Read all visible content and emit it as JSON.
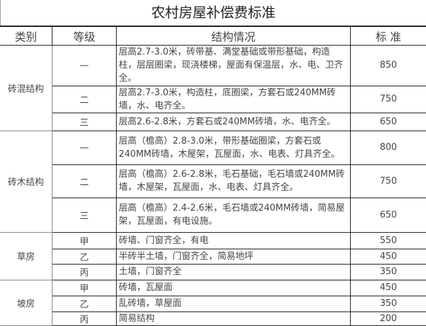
{
  "title": "农村房屋补偿费标准",
  "headers": [
    "类别",
    "等级",
    "结构情况",
    "标 准"
  ],
  "groups": [
    {
      "category": "砖混结构",
      "rows": [
        {
          "grade": "一",
          "desc": "层高2.7-3.0米，砖带基、满堂基础或带形基础，构造柱，层层圈梁，现浇楼梯，屋面有保温层，水、电、卫齐全。",
          "standard": "850"
        },
        {
          "grade": "二",
          "desc": "层高2.7-3.0米，构造柱，底圈梁，方套石或240MM砖墙，水、电齐全。",
          "standard": "750"
        },
        {
          "grade": "三",
          "desc": "层高2.6-2.8米，方套石或240MM砖墙，水、电齐全。",
          "standard": "650"
        }
      ]
    },
    {
      "category": "砖木结构",
      "rows": [
        {
          "grade": "一",
          "desc": "层高（檐高）2.8-3.0米，带形基础圈梁，方套石或240MM砖墙，木屋架，瓦屋面，水、电表、灯具齐全。",
          "standard": "800"
        },
        {
          "grade": "二",
          "desc": "层高（檐高）2.6-2.8米，毛石基础，毛石墙或240MM砖墙，木屋架，瓦屋面，水、电表、灯具齐全。",
          "standard": "750"
        },
        {
          "grade": "三",
          "desc": "层高（檐高）2.4-2.6米，毛石墙或240MM砖墙，简易屋架，瓦屋面，有电设施。",
          "standard": "650"
        }
      ]
    },
    {
      "category": "草房",
      "rows": [
        {
          "grade": "甲",
          "desc": "砖墙、门窗齐全，有电",
          "standard": "550"
        },
        {
          "grade": "乙",
          "desc": "半砖半土墙，门窗齐全，简易地坪",
          "standard": "450"
        },
        {
          "grade": "丙",
          "desc": "土墙，门窗齐全",
          "standard": "350"
        }
      ]
    },
    {
      "category": "坡房",
      "rows": [
        {
          "grade": "甲",
          "desc": "砖墙，瓦屋面",
          "standard": "450"
        },
        {
          "grade": "乙",
          "desc": "乱砖墙，草屋面",
          "standard": "350"
        },
        {
          "grade": "丙",
          "desc": "简易结构",
          "standard": "200"
        }
      ]
    }
  ]
}
